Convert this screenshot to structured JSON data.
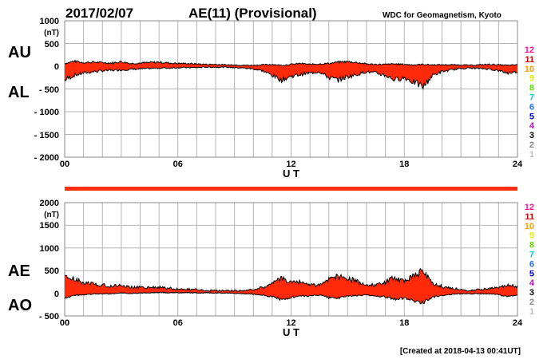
{
  "header": {
    "date": "2017/02/07",
    "title": "AE(11) (Provisional)",
    "source": "WDC for Geomagnetism, Kyoto",
    "created": "[Created at 2018-04-13 00:41UT]"
  },
  "colors": {
    "fill": "#ff2a0a",
    "line": "#000000",
    "grid": "#b4b4b4",
    "coverage": "#ff3010"
  },
  "legend_numbers": [
    "12",
    "11",
    "10",
    "9",
    "8",
    "7",
    "6",
    "5",
    "4",
    "3",
    "2",
    "1"
  ],
  "legend_colors": [
    "#ff1493",
    "#e00000",
    "#ff9900",
    "#e8e800",
    "#66dd00",
    "#00cccc",
    "#1e6eff",
    "#0000cc",
    "#cc00cc",
    "#000000",
    "#888888",
    "#c0c0c0"
  ],
  "chart_data": [
    {
      "type": "area",
      "panel": "AU/AL",
      "side_labels": [
        "AU",
        "AL"
      ],
      "unit_label": "(nT)",
      "xlabel": "U T",
      "xticks": [
        "00",
        "06",
        "12",
        "18",
        "24"
      ],
      "xlim": [
        0,
        24
      ],
      "ylim": [
        -2000,
        1000
      ],
      "yticks": [
        1000,
        500,
        0,
        -500,
        -1000,
        -1500,
        -2000
      ],
      "ytick_labels": [
        "1000",
        "500",
        "0",
        "- 500",
        "- 1000",
        "- 1500",
        "- 2000"
      ],
      "grid": true,
      "hours": [
        0,
        0.5,
        1,
        1.5,
        2,
        2.5,
        3,
        3.5,
        4,
        4.5,
        5,
        5.5,
        6,
        6.5,
        7,
        7.5,
        8,
        8.5,
        9,
        9.5,
        10,
        10.5,
        11,
        11.5,
        12,
        12.5,
        13,
        13.5,
        14,
        14.5,
        15,
        15.5,
        16,
        16.5,
        17,
        17.5,
        18,
        18.5,
        19,
        19.5,
        20,
        20.5,
        21,
        21.5,
        22,
        22.5,
        23,
        23.5,
        24
      ],
      "series": [
        {
          "name": "AU",
          "values": [
            60,
            110,
            80,
            90,
            80,
            70,
            100,
            60,
            70,
            80,
            90,
            70,
            60,
            60,
            50,
            40,
            40,
            30,
            30,
            20,
            20,
            30,
            40,
            20,
            40,
            60,
            40,
            50,
            60,
            90,
            100,
            80,
            50,
            40,
            40,
            50,
            40,
            30,
            40,
            30,
            30,
            30,
            30,
            20,
            30,
            40,
            30,
            20,
            30
          ]
        },
        {
          "name": "AL",
          "values": [
            -300,
            -200,
            -150,
            -120,
            -100,
            -90,
            -80,
            -70,
            -60,
            -50,
            -40,
            -40,
            -30,
            -30,
            -30,
            -20,
            -20,
            -20,
            -30,
            -40,
            -60,
            -100,
            -200,
            -300,
            -220,
            -180,
            -150,
            -120,
            -250,
            -300,
            -230,
            -180,
            -120,
            -150,
            -200,
            -300,
            -250,
            -350,
            -450,
            -200,
            -120,
            -80,
            -50,
            -40,
            -50,
            -60,
            -100,
            -150,
            -120
          ]
        }
      ]
    },
    {
      "type": "area",
      "panel": "AE/AO",
      "side_labels": [
        "AE",
        "AO"
      ],
      "unit_label": "(nT)",
      "xlabel": "U T",
      "xticks": [
        "00",
        "06",
        "12",
        "18",
        "24"
      ],
      "xlim": [
        0,
        24
      ],
      "ylim": [
        -500,
        2000
      ],
      "yticks": [
        2000,
        1500,
        1000,
        500,
        0,
        -500
      ],
      "ytick_labels": [
        "2000",
        "1500",
        "1000",
        "500",
        "0",
        "- 500"
      ],
      "grid": true,
      "hours": [
        0,
        0.5,
        1,
        1.5,
        2,
        2.5,
        3,
        3.5,
        4,
        4.5,
        5,
        5.5,
        6,
        6.5,
        7,
        7.5,
        8,
        8.5,
        9,
        9.5,
        10,
        10.5,
        11,
        11.5,
        12,
        12.5,
        13,
        13.5,
        14,
        14.5,
        15,
        15.5,
        16,
        16.5,
        17,
        17.5,
        18,
        18.5,
        19,
        19.5,
        20,
        20.5,
        21,
        21.5,
        22,
        22.5,
        23,
        23.5,
        24
      ],
      "series": [
        {
          "name": "AE",
          "values": [
            360,
            310,
            230,
            210,
            180,
            160,
            180,
            130,
            130,
            130,
            130,
            110,
            90,
            90,
            80,
            60,
            60,
            50,
            60,
            60,
            80,
            130,
            240,
            320,
            260,
            240,
            190,
            170,
            310,
            390,
            330,
            260,
            170,
            190,
            240,
            350,
            290,
            380,
            490,
            230,
            150,
            110,
            80,
            60,
            80,
            100,
            130,
            170,
            150
          ]
        },
        {
          "name": "AO",
          "values": [
            -120,
            -45,
            -35,
            -15,
            -10,
            -10,
            10,
            -5,
            5,
            15,
            25,
            15,
            15,
            15,
            10,
            10,
            10,
            5,
            0,
            -10,
            -20,
            -35,
            -80,
            -140,
            -90,
            -60,
            -55,
            -35,
            -95,
            -105,
            -65,
            -50,
            -35,
            -55,
            -80,
            -125,
            -105,
            -160,
            -205,
            -85,
            -45,
            -25,
            -10,
            -10,
            -10,
            -10,
            -35,
            -65,
            -45
          ]
        }
      ]
    }
  ]
}
